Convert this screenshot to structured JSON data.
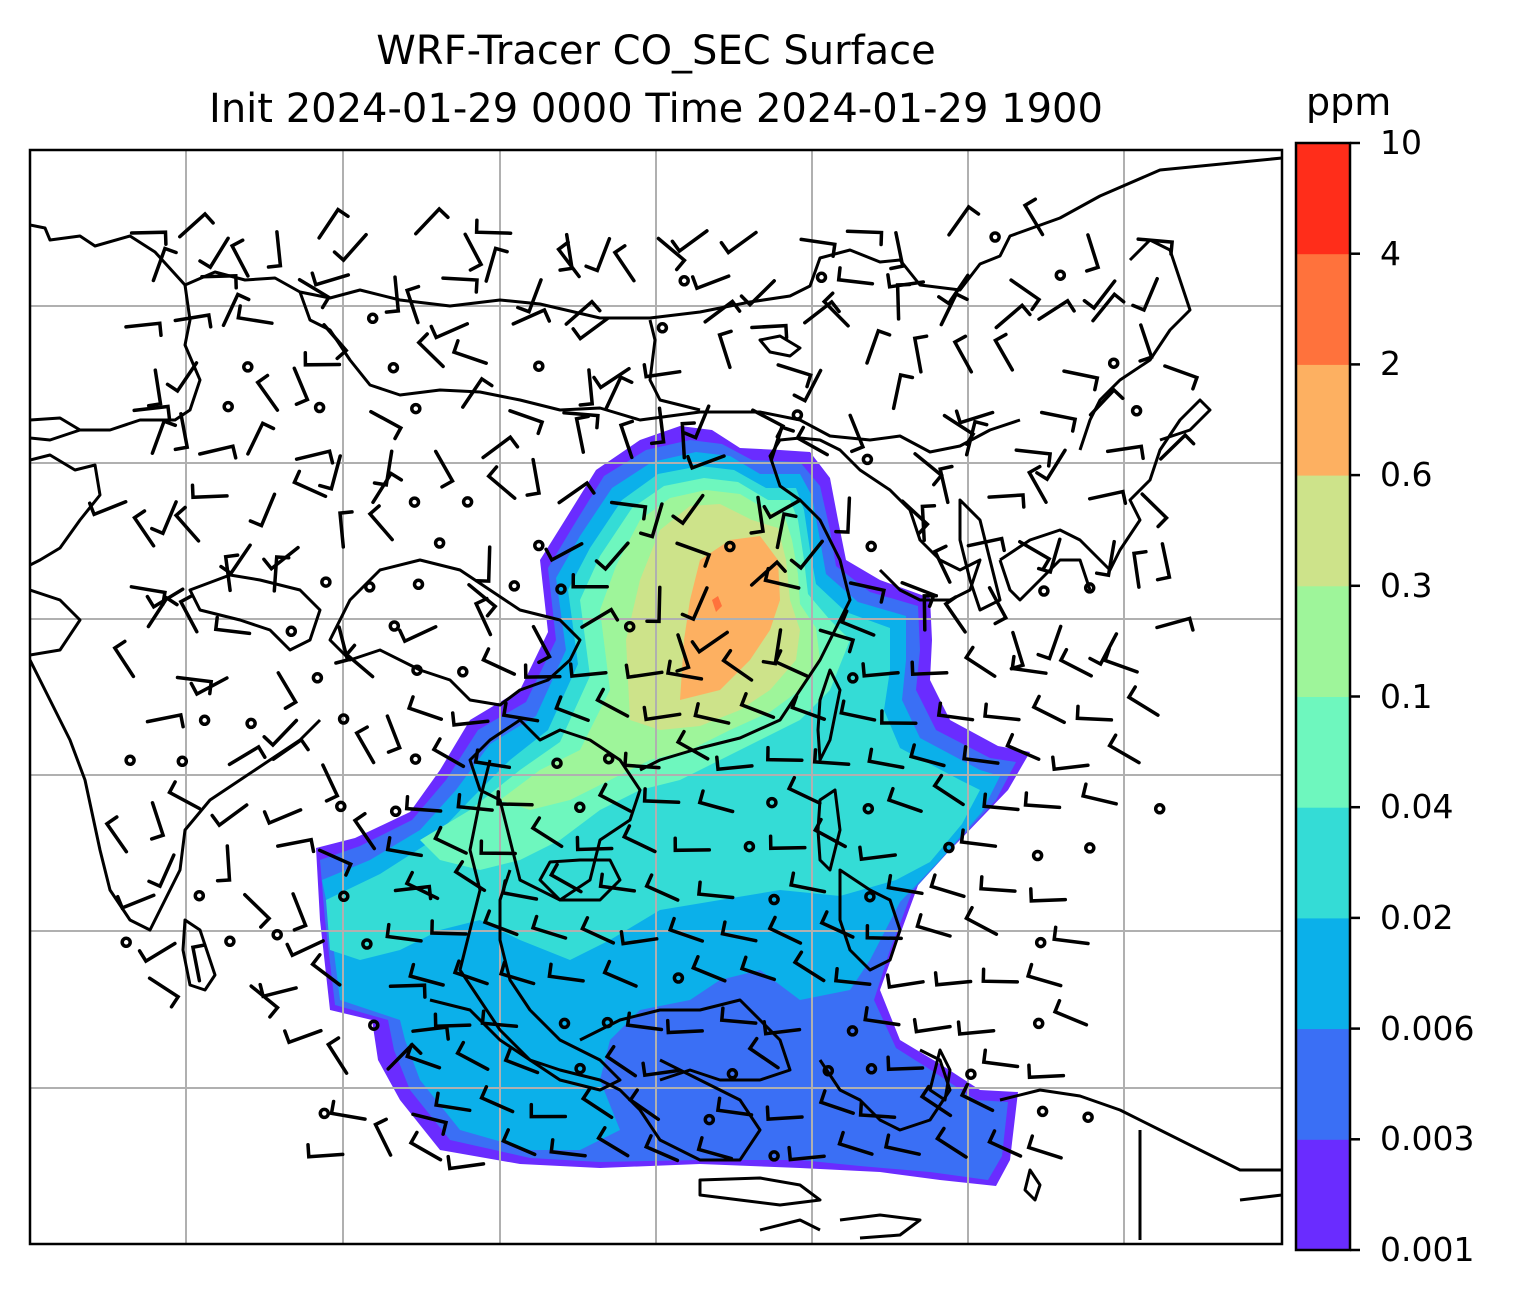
{
  "title": {
    "line1": "WRF-Tracer CO_SEC Surface",
    "line2": "Init 2024-01-29 0000 Time 2024-01-29 1900"
  },
  "colorbar": {
    "unit": "ppm",
    "levels": [
      "0.001",
      "0.003",
      "0.006",
      "0.02",
      "0.04",
      "0.1",
      "0.3",
      "0.6",
      "2",
      "4",
      "10"
    ],
    "colors": [
      "#6a2cff",
      "#3a6ff5",
      "#0bb0ea",
      "#34dcd6",
      "#6ef7be",
      "#9ef59a",
      "#cde38a",
      "#fdb061",
      "#ff723c",
      "#ff2d1a"
    ]
  },
  "map": {
    "projection": "Lambert conformal, East/Southeast Asia",
    "gridlines": true,
    "field": "CO_SEC surface concentration",
    "overlay": "wind barbs",
    "background": "#ffffff",
    "coastline_color": "#000000",
    "grid_color": "#b0b0b0"
  }
}
